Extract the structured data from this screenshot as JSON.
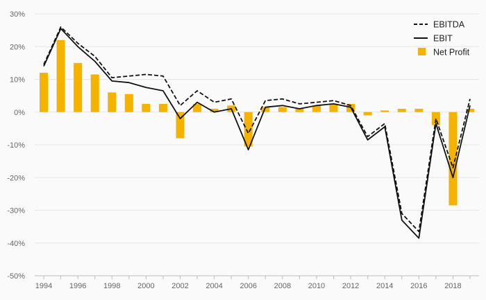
{
  "chart_data": {
    "type": "bar+line",
    "title": "",
    "xlabel": "",
    "ylabel": "",
    "ylim": [
      -50,
      30
    ],
    "y_ticks": [
      "30%",
      "20%",
      "10%",
      "0%",
      "-10%",
      "-20%",
      "-30%",
      "-40%",
      "-50%"
    ],
    "y_tick_values": [
      30,
      20,
      10,
      0,
      -10,
      -20,
      -30,
      -40,
      -50
    ],
    "x": [
      1994,
      1995,
      1996,
      1997,
      1998,
      1999,
      2000,
      2001,
      2002,
      2003,
      2004,
      2005,
      2006,
      2007,
      2008,
      2009,
      2010,
      2011,
      2012,
      2013,
      2014,
      2015,
      2016,
      2017,
      2018,
      2019
    ],
    "x_tick_labels": [
      "1994",
      "1996",
      "1998",
      "2000",
      "2002",
      "2004",
      "2006",
      "2008",
      "2010",
      "2012",
      "2014",
      "2016",
      "2018"
    ],
    "x_tick_values": [
      1994,
      1996,
      1998,
      2000,
      2002,
      2004,
      2006,
      2008,
      2010,
      2012,
      2014,
      2016,
      2018
    ],
    "grid": true,
    "legend_position": "top-right",
    "colors": {
      "ebitda": "#111111",
      "ebit": "#111111",
      "net_profit": "#f5b300",
      "grid": "#e6e6e6",
      "axis": "#bbbbbb"
    },
    "series": [
      {
        "name": "EBITDA",
        "kind": "line",
        "style": "dashed",
        "values": [
          14.5,
          26,
          21,
          17,
          10.5,
          11,
          11.5,
          11,
          2,
          6.5,
          3,
          4,
          -6.5,
          3.5,
          4,
          2.5,
          3,
          3.5,
          2,
          -7.5,
          -3.5,
          -31,
          -36.5,
          -2,
          -17,
          4
        ]
      },
      {
        "name": "EBIT",
        "kind": "line",
        "style": "solid",
        "values": [
          14,
          25.5,
          20,
          15.5,
          9.5,
          9,
          7.5,
          6.5,
          -2,
          3,
          0,
          1,
          -11.5,
          1.5,
          2,
          1,
          2,
          2.5,
          1.5,
          -8.5,
          -4.5,
          -33,
          -38.5,
          -3.5,
          -20,
          2
        ]
      },
      {
        "name": "Net Profit",
        "kind": "bar",
        "values": [
          12,
          22,
          15,
          11.5,
          6,
          5.5,
          2.5,
          2.5,
          -8,
          2.5,
          1,
          2,
          -10.5,
          1.5,
          1.5,
          1,
          2,
          2.5,
          2.5,
          -1,
          0.5,
          1,
          1,
          -4,
          -28.5,
          1
        ]
      }
    ]
  }
}
